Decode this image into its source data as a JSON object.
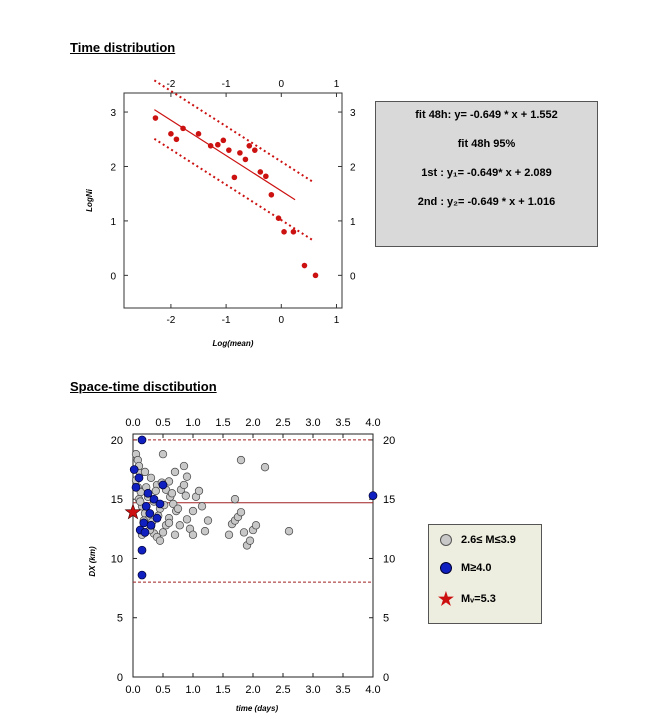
{
  "headings": {
    "time": "Time distribution",
    "space": "Space-time disctibution"
  },
  "fit_box": {
    "line1": "fit 48h:  y= -0.649 * x + 1.552",
    "line2": "fit 48h 95%",
    "line3": "1st :  y₁= -0.649* x + 2.089",
    "line4": "2nd :  y₂= -0.649 * x + 1.016"
  },
  "legend": {
    "gray_label": "2.6≤ M≤3.9",
    "blue_label": "M≥4.0",
    "star_label": "Mᵥ=5.3",
    "gray_color": "#c8c8c8",
    "blue_color": "#1020c0",
    "star_color": "#cc1010"
  },
  "chart_data": [
    {
      "type": "scatter",
      "title": "Time distribution",
      "xlabel": "Log(mean)",
      "ylabel": "LogNi",
      "xlim": [
        -2.85,
        1.1
      ],
      "ylim": [
        -0.6,
        3.35
      ],
      "xticks": [
        -2,
        -1,
        0,
        1
      ],
      "yticks": [
        0,
        1,
        2,
        3
      ],
      "grid": false,
      "color": "#cc1111",
      "points": [
        {
          "x": -2.28,
          "y": 2.89
        },
        {
          "x": -2.0,
          "y": 2.6
        },
        {
          "x": -1.9,
          "y": 2.5
        },
        {
          "x": -1.78,
          "y": 2.7
        },
        {
          "x": -1.5,
          "y": 2.6
        },
        {
          "x": -1.28,
          "y": 2.38
        },
        {
          "x": -1.15,
          "y": 2.4
        },
        {
          "x": -1.05,
          "y": 2.48
        },
        {
          "x": -0.95,
          "y": 2.3
        },
        {
          "x": -0.85,
          "y": 1.8
        },
        {
          "x": -0.75,
          "y": 2.25
        },
        {
          "x": -0.65,
          "y": 2.13
        },
        {
          "x": -0.58,
          "y": 2.38
        },
        {
          "x": -0.48,
          "y": 2.3
        },
        {
          "x": -0.38,
          "y": 1.9
        },
        {
          "x": -0.28,
          "y": 1.82
        },
        {
          "x": -0.18,
          "y": 1.48
        },
        {
          "x": -0.05,
          "y": 1.05
        },
        {
          "x": 0.05,
          "y": 0.8
        },
        {
          "x": 0.22,
          "y": 0.8
        },
        {
          "x": 0.42,
          "y": 0.18
        },
        {
          "x": 0.62,
          "y": 0.0
        }
      ],
      "lines": [
        {
          "name": "fit 48h",
          "slope": -0.649,
          "intercept": 1.552,
          "x_range": [
            -2.3,
            0.25
          ],
          "style": "solid"
        },
        {
          "name": "1st",
          "slope": -0.649,
          "intercept": 2.089,
          "x_range": [
            -2.3,
            0.6
          ],
          "style": "dotted"
        },
        {
          "name": "2nd",
          "slope": -0.649,
          "intercept": 1.016,
          "x_range": [
            -2.3,
            0.6
          ],
          "style": "dotted"
        }
      ]
    },
    {
      "type": "scatter",
      "title": "Space-time disctibution",
      "xlabel": "time (days)",
      "ylabel": "DX (km)",
      "xlim": [
        0.0,
        4.0
      ],
      "ylim": [
        0,
        20.5
      ],
      "xticks": [
        "0.0",
        "0.5",
        "1.0",
        "1.5",
        "2.0",
        "2.5",
        "3.0",
        "3.5",
        "4.0"
      ],
      "yticks": [
        0,
        5,
        10,
        15,
        20
      ],
      "grid": false,
      "hlines": [
        {
          "y": 20,
          "style": "dashed"
        },
        {
          "y": 14.7,
          "style": "solid"
        },
        {
          "y": 8,
          "style": "dashed"
        }
      ],
      "series": [
        {
          "name": "2.6≤ M≤3.9",
          "color": "#c8c8c8",
          "points": [
            [
              0.05,
              18.8
            ],
            [
              0.08,
              18.3
            ],
            [
              0.1,
              17.8
            ],
            [
              0.12,
              17.2
            ],
            [
              0.05,
              16.6
            ],
            [
              0.08,
              16.0
            ],
            [
              0.13,
              15.6
            ],
            [
              0.1,
              15.0
            ],
            [
              0.15,
              14.4
            ],
            [
              0.2,
              13.8
            ],
            [
              0.25,
              13.3
            ],
            [
              0.3,
              12.7
            ],
            [
              0.35,
              12.1
            ],
            [
              0.4,
              11.8
            ],
            [
              0.45,
              11.5
            ],
            [
              0.5,
              12.2
            ],
            [
              0.55,
              12.8
            ],
            [
              0.6,
              13.4
            ],
            [
              0.2,
              17.3
            ],
            [
              0.3,
              16.8
            ],
            [
              0.4,
              16.2
            ],
            [
              0.5,
              18.8
            ],
            [
              0.55,
              15.8
            ],
            [
              0.62,
              15.2
            ],
            [
              0.67,
              14.6
            ],
            [
              0.72,
              14.0
            ],
            [
              0.25,
              15.2
            ],
            [
              0.35,
              14.8
            ],
            [
              0.45,
              14.2
            ],
            [
              0.18,
              13.2
            ],
            [
              0.28,
              12.4
            ],
            [
              0.15,
              12.0
            ],
            [
              0.42,
              13.6
            ],
            [
              0.52,
              14.5
            ],
            [
              0.6,
              16.5
            ],
            [
              0.65,
              15.5
            ],
            [
              0.75,
              14.2
            ],
            [
              0.8,
              15.8
            ],
            [
              0.85,
              16.2
            ],
            [
              0.88,
              15.3
            ],
            [
              0.9,
              13.3
            ],
            [
              0.95,
              12.5
            ],
            [
              1.0,
              14.0
            ],
            [
              1.05,
              15.2
            ],
            [
              1.1,
              15.7
            ],
            [
              1.15,
              14.4
            ],
            [
              1.2,
              12.3
            ],
            [
              1.25,
              13.2
            ],
            [
              0.7,
              17.3
            ],
            [
              0.85,
              17.8
            ],
            [
              0.9,
              16.9
            ],
            [
              1.0,
              12.0
            ],
            [
              0.6,
              13.0
            ],
            [
              0.38,
              15.7
            ],
            [
              0.48,
              16.4
            ],
            [
              0.22,
              16.0
            ],
            [
              0.32,
              13.1
            ],
            [
              0.12,
              14.8
            ],
            [
              0.7,
              12.0
            ],
            [
              0.78,
              12.8
            ],
            [
              1.6,
              12.0
            ],
            [
              1.65,
              12.9
            ],
            [
              1.7,
              13.2
            ],
            [
              1.75,
              13.5
            ],
            [
              1.8,
              13.9
            ],
            [
              1.85,
              12.2
            ],
            [
              1.9,
              11.1
            ],
            [
              1.95,
              11.5
            ],
            [
              1.7,
              15.0
            ],
            [
              1.8,
              18.3
            ],
            [
              2.0,
              12.4
            ],
            [
              2.05,
              12.8
            ],
            [
              2.2,
              17.7
            ],
            [
              2.6,
              12.3
            ]
          ]
        },
        {
          "name": "M≥4.0",
          "color": "#1020c0",
          "points": [
            [
              0.15,
              20.0
            ],
            [
              0.02,
              17.5
            ],
            [
              0.1,
              16.8
            ],
            [
              0.05,
              16.0
            ],
            [
              0.25,
              15.5
            ],
            [
              0.35,
              15.0
            ],
            [
              0.22,
              14.4
            ],
            [
              0.28,
              13.8
            ],
            [
              0.18,
              13.0
            ],
            [
              0.3,
              12.8
            ],
            [
              0.12,
              12.4
            ],
            [
              0.2,
              12.2
            ],
            [
              0.4,
              13.4
            ],
            [
              0.45,
              14.6
            ],
            [
              0.5,
              16.2
            ],
            [
              0.15,
              10.7
            ],
            [
              0.15,
              8.6
            ],
            [
              4.0,
              15.3
            ]
          ]
        },
        {
          "name": "Mᵥ=5.3",
          "color": "#cc1010",
          "marker": "star",
          "points": [
            [
              0.0,
              13.9
            ]
          ]
        }
      ]
    }
  ]
}
